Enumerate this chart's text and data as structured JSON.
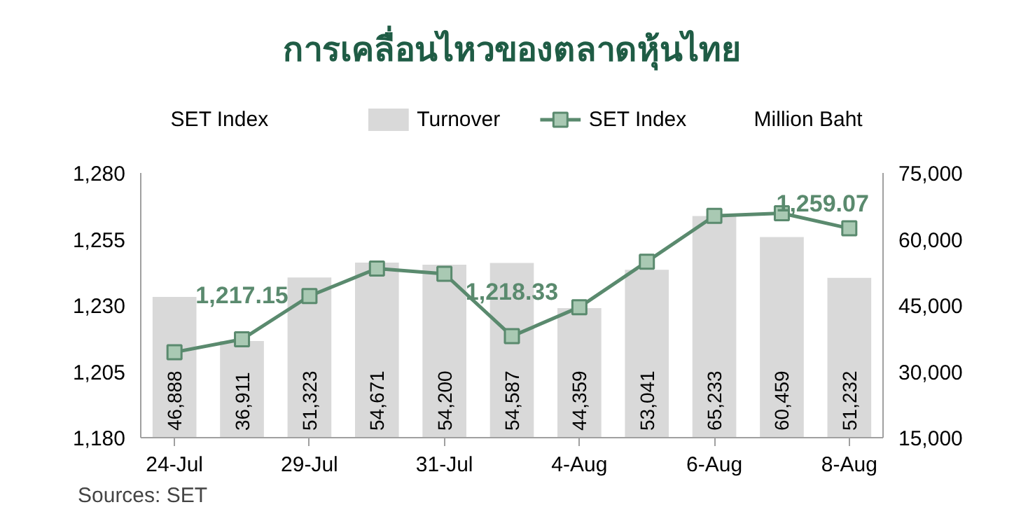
{
  "chart_data": {
    "type": "bar",
    "title": "การเคลื่อนไหวของตลาดหุ้นไทย",
    "ylabel": "SET Index",
    "y2label": "Million Baht",
    "categories": [
      "24-Jul",
      null,
      "29-Jul",
      null,
      "31-Jul",
      null,
      "4-Aug",
      null,
      "6-Aug",
      null,
      "8-Aug"
    ],
    "series": [
      {
        "name": "Turnover",
        "axis": "y2",
        "color": "#d9d9d9",
        "values": [
          46888,
          36911,
          51323,
          54671,
          54200,
          54587,
          44359,
          53041,
          65233,
          60459,
          51232
        ],
        "value_labels": [
          "46,888",
          "36,911",
          "51,323",
          "54,671",
          "54,200",
          "54,587",
          "44,359",
          "53,041",
          "65,233",
          "60,459",
          "51,232"
        ]
      },
      {
        "name": "SET Index",
        "type": "line",
        "axis": "y",
        "color": "#5a8a6e",
        "marker": "square",
        "values": [
          1212.3,
          1217.15,
          1233.5,
          1243.9,
          1241.9,
          1218.33,
          1229.3,
          1246.5,
          1263.8,
          1264.8,
          1259.07
        ],
        "value_labels": [
          null,
          "1,217.15",
          null,
          null,
          null,
          "1,218.33",
          null,
          null,
          null,
          null,
          "1,259.07"
        ]
      }
    ],
    "ylim": [
      1180,
      1280
    ],
    "yticks": [
      {
        "value": 1180,
        "label": "1,180"
      },
      {
        "value": 1205,
        "label": "1,205"
      },
      {
        "value": 1230,
        "label": "1,230"
      },
      {
        "value": 1255,
        "label": "1,255"
      },
      {
        "value": 1280,
        "label": "1,280"
      }
    ],
    "y2lim": [
      15000,
      75000
    ],
    "y2ticks": [
      {
        "value": 15000,
        "label": "15,000"
      },
      {
        "value": 30000,
        "label": "30,000"
      },
      {
        "value": 45000,
        "label": "45,000"
      },
      {
        "value": 60000,
        "label": "60,000"
      },
      {
        "value": 75000,
        "label": "75,000"
      }
    ],
    "grid": false,
    "legend": "top",
    "annotations": [
      "Sources: SET"
    ]
  }
}
